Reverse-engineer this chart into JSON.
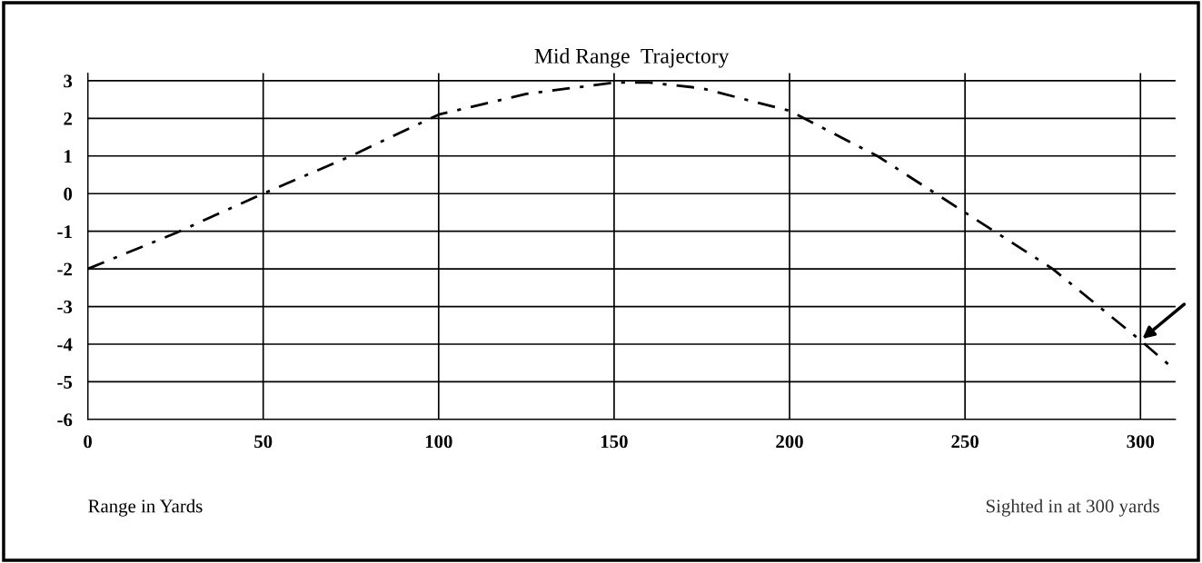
{
  "chart_data": {
    "type": "line",
    "title": "Mid Range  Trajectory",
    "xlabel": "Range in Yards",
    "x": [
      0,
      25,
      50,
      75,
      100,
      125,
      150,
      160,
      175,
      200,
      225,
      250,
      275,
      300,
      310
    ],
    "series": [
      {
        "color": "#000000",
        "values": [
          -2,
          -1.05,
          0,
          1.0,
          2.1,
          2.65,
          2.95,
          2.95,
          2.8,
          2.2,
          1.0,
          -0.5,
          -2.0,
          -3.9,
          -4.7
        ]
      }
    ],
    "xlim": [
      0,
      310
    ],
    "ylim": [
      -6,
      3.2
    ],
    "xticks": [
      0,
      50,
      100,
      150,
      200,
      250,
      300
    ],
    "yticks": [
      -6,
      -5,
      -4,
      -3,
      -2,
      -1,
      0,
      1,
      2,
      3
    ],
    "grid": true,
    "marker": "none",
    "line_style": "dashed",
    "annotations": [
      "Sighted in at 300 yards"
    ]
  }
}
